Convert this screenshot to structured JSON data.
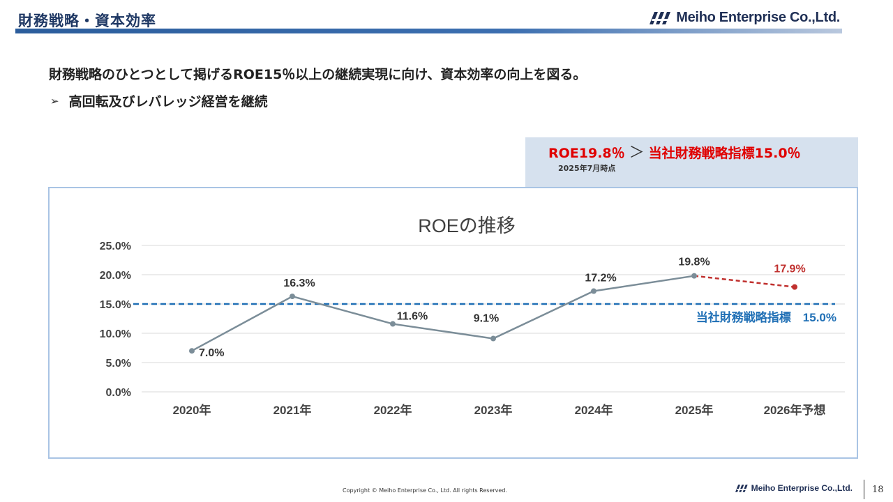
{
  "header": {
    "title": "財務戦略・資本効率",
    "brand": "Meiho Enterprise Co.,Ltd."
  },
  "body": {
    "lead": "財務戦略のひとつとして掲げるROE15％以上の継続実現に向け、資本効率の向上を図る。",
    "bullet_arrow": "➢",
    "bullet": "高回転及びレバレッジ経営を継続"
  },
  "callout": {
    "roe": "ROE19.8％",
    "gt": "＞",
    "target": "当社財務戦略指標15.0％",
    "note": "2025年7月時点"
  },
  "chart_data": {
    "type": "line",
    "title": "ROEの推移",
    "categories": [
      "2020年",
      "2021年",
      "2022年",
      "2023年",
      "2024年",
      "2025年",
      "2026年予想"
    ],
    "series": [
      {
        "name": "ROE",
        "values": [
          7.0,
          16.3,
          11.6,
          9.1,
          17.2,
          19.8,
          17.9
        ],
        "labels": [
          "7.0%",
          "16.3%",
          "11.6%",
          "9.1%",
          "17.2%",
          "19.8%",
          "17.9%"
        ],
        "forecast_from_index": 5
      }
    ],
    "reference_line": {
      "value": 15.0,
      "label": "当社財務戦略指標　15.0%"
    },
    "ylim": [
      0,
      25
    ],
    "yticks": [
      0,
      5,
      10,
      15,
      20,
      25
    ],
    "ytick_labels": [
      "0.0%",
      "5.0%",
      "10.0%",
      "15.0%",
      "20.0%",
      "25.0%"
    ],
    "xlabel": "",
    "ylabel": "",
    "grid": true,
    "colors": {
      "actual": "#7b8d98",
      "forecast": "#c0302e",
      "reference": "#1f6fb5",
      "grid": "#d9d9d9"
    }
  },
  "footer": {
    "copyright": "Copyright © Meiho Enterprise Co., Ltd. All rights Reserved.",
    "brand": "Meiho Enterprise Co.,Ltd.",
    "page": "18"
  }
}
